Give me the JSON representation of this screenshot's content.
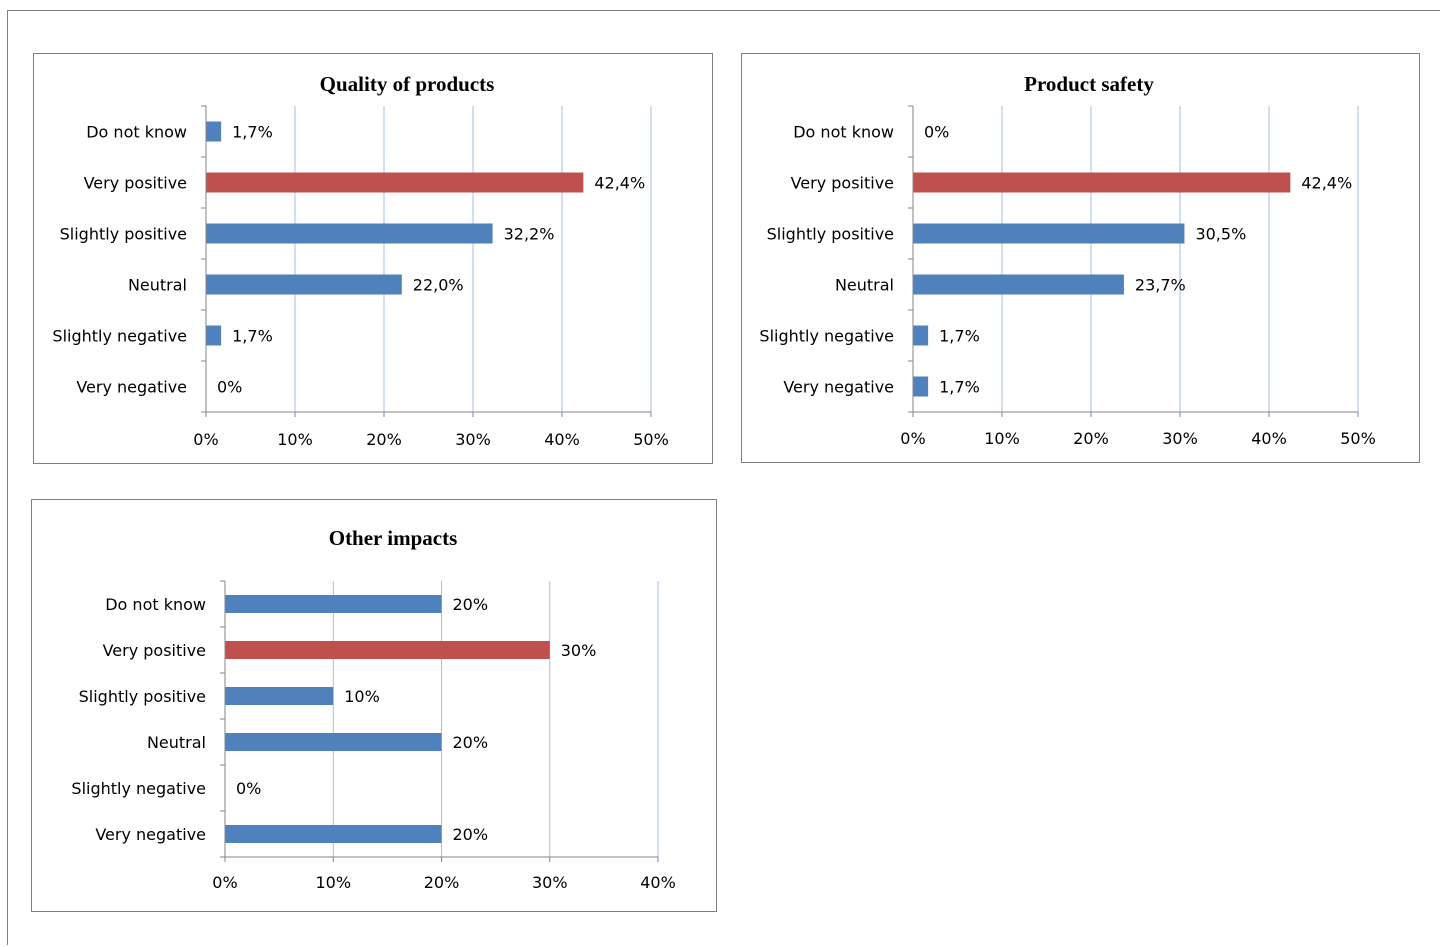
{
  "colors": {
    "bar": "#4f81bd",
    "highlight": "#c0504d",
    "grid": "#a6bfdd",
    "axis": "#868686"
  },
  "chart_data": [
    {
      "type": "bar",
      "orientation": "horizontal",
      "title": "Quality of products",
      "categories": [
        "Do not know",
        "Very positive",
        "Slightly positive",
        "Neutral",
        "Slightly negative",
        "Very negative"
      ],
      "values": [
        1.7,
        42.4,
        32.2,
        22.0,
        1.7,
        0
      ],
      "value_labels": [
        "1,7%",
        "42,4%",
        "32,2%",
        "22,0%",
        "1,7%",
        "0%"
      ],
      "highlight_category": "Very positive",
      "xlim": [
        0,
        50
      ],
      "xticks": [
        0,
        10,
        20,
        30,
        40,
        50
      ],
      "xtick_labels": [
        "0%",
        "10%",
        "20%",
        "30%",
        "40%",
        "50%"
      ],
      "grid": true,
      "legend": "none"
    },
    {
      "type": "bar",
      "orientation": "horizontal",
      "title": "Product safety",
      "categories": [
        "Do not know",
        "Very positive",
        "Slightly positive",
        "Neutral",
        "Slightly negative",
        "Very negative"
      ],
      "values": [
        0,
        42.4,
        30.5,
        23.7,
        1.7,
        1.7
      ],
      "value_labels": [
        "0%",
        "42,4%",
        "30,5%",
        "23,7%",
        "1,7%",
        "1,7%"
      ],
      "highlight_category": "Very positive",
      "xlim": [
        0,
        50
      ],
      "xticks": [
        0,
        10,
        20,
        30,
        40,
        50
      ],
      "xtick_labels": [
        "0%",
        "10%",
        "20%",
        "30%",
        "40%",
        "50%"
      ],
      "grid": true,
      "legend": "none"
    },
    {
      "type": "bar",
      "orientation": "horizontal",
      "title": "Other impacts",
      "categories": [
        "Do not know",
        "Very positive",
        "Slightly positive",
        "Neutral",
        "Slightly negative",
        "Very negative"
      ],
      "values": [
        20,
        30,
        10,
        20,
        0,
        20
      ],
      "value_labels": [
        "20%",
        "30%",
        "10%",
        "20%",
        "0%",
        "20%"
      ],
      "highlight_category": "Very positive",
      "xlim": [
        0,
        40
      ],
      "xticks": [
        0,
        10,
        20,
        30,
        40
      ],
      "xtick_labels": [
        "0%",
        "10%",
        "20%",
        "30%",
        "40%"
      ],
      "grid": true,
      "legend": "none"
    }
  ]
}
